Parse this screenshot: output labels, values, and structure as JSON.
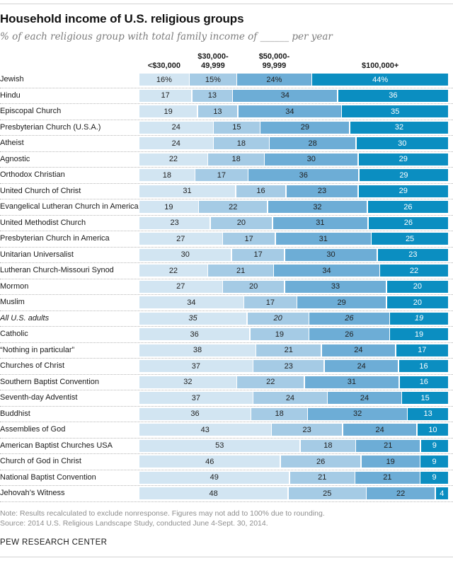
{
  "header": {
    "title": "Household income of U.S. religious groups",
    "subtitle": "% of each religious group with total family income of ______ per year"
  },
  "columns_display": [
    "<$30,000",
    "$30,000-\n49,999",
    "$50,000-\n99,999",
    "$100,000+"
  ],
  "value_suffix_first_row": "%",
  "emphasized_row": "All U.S. adults",
  "chart_data": {
    "type": "bar",
    "stacked": true,
    "orientation": "horizontal",
    "title": "Household income of U.S. religious groups",
    "subtitle": "% of each religious group with total family income of ______ per year",
    "xlim": [
      0,
      100
    ],
    "grid": false,
    "legend_position": "top-as-column-headers",
    "categories": [
      "Jewish",
      "Hindu",
      "Episcopal Church",
      "Presbyterian Church (U.S.A.)",
      "Atheist",
      "Agnostic",
      "Orthodox Christian",
      "United Church of Christ",
      "Evangelical Lutheran Church in America",
      "United Methodist Church",
      "Presbyterian Church in America",
      "Unitarian Universalist",
      "Lutheran Church-Missouri Synod",
      "Mormon",
      "Muslim",
      "All U.S. adults",
      "Catholic",
      "“Nothing in particular”",
      "Churches of Christ",
      "Southern Baptist Convention",
      "Seventh-day Adventist",
      "Buddhist",
      "Assemblies of God",
      "American Baptist Churches USA",
      "Church of God in Christ",
      "National Baptist Convention",
      "Jehovah’s Witness"
    ],
    "series": [
      {
        "name": "<$30,000",
        "color": "#d2e5f2",
        "values": [
          16,
          17,
          19,
          24,
          24,
          22,
          18,
          31,
          19,
          23,
          27,
          30,
          22,
          27,
          34,
          35,
          36,
          38,
          37,
          32,
          37,
          36,
          43,
          53,
          46,
          49,
          48
        ]
      },
      {
        "name": "$30,000-49,999",
        "color": "#a5cbe5",
        "values": [
          15,
          13,
          13,
          15,
          18,
          18,
          17,
          16,
          22,
          20,
          17,
          17,
          21,
          20,
          17,
          20,
          19,
          21,
          23,
          22,
          24,
          18,
          23,
          18,
          26,
          21,
          25
        ]
      },
      {
        "name": "$50,000-99,999",
        "color": "#6dadd6",
        "values": [
          24,
          34,
          34,
          29,
          28,
          30,
          36,
          23,
          32,
          31,
          31,
          30,
          34,
          33,
          29,
          26,
          26,
          24,
          24,
          31,
          24,
          32,
          24,
          21,
          19,
          21,
          22
        ]
      },
      {
        "name": "$100,000+",
        "color": "#0b8ec1",
        "values": [
          44,
          36,
          35,
          32,
          30,
          29,
          29,
          29,
          26,
          26,
          25,
          23,
          22,
          20,
          20,
          19,
          19,
          17,
          16,
          16,
          15,
          13,
          10,
          9,
          9,
          9,
          4
        ]
      }
    ]
  },
  "footer": {
    "note": "Note: Results recalculated to exclude nonresponse. Figures may not add to 100% due to rounding.",
    "source": "Source: 2014 U.S. Religious Landscape Study, conducted June 4-Sept. 30, 2014.",
    "brand": "PEW RESEARCH CENTER"
  }
}
